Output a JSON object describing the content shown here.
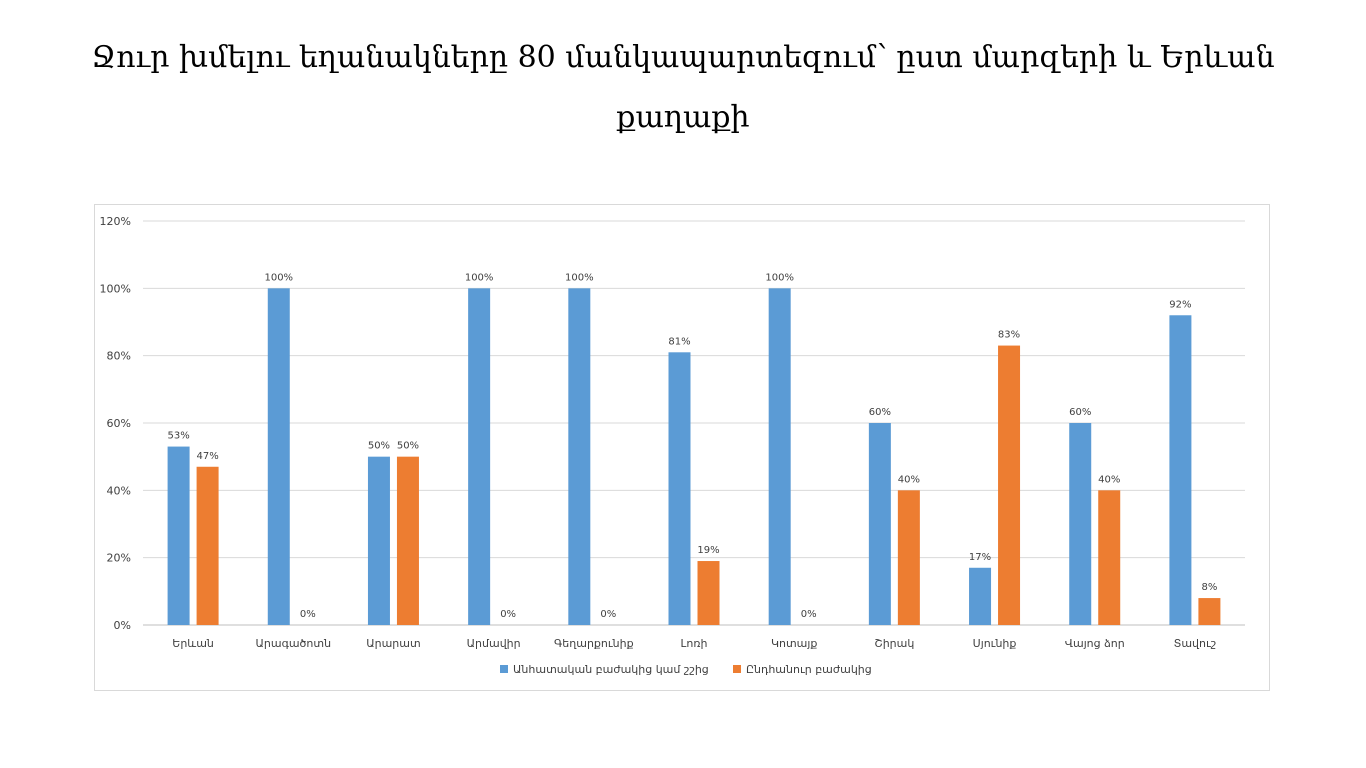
{
  "slide": {
    "title": "Ջուր խմելու եղանակները 80 մանկապարտեզում՝ ըստ մարզերի և Երևան քաղաքի"
  },
  "chart_data": {
    "type": "bar",
    "title": "",
    "xlabel": "",
    "ylabel": "",
    "ylim": [
      0,
      120
    ],
    "y_ticks": [
      "0%",
      "20%",
      "40%",
      "60%",
      "80%",
      "100%",
      "120%"
    ],
    "y_tick_values": [
      0,
      20,
      40,
      60,
      80,
      100,
      120
    ],
    "grid": true,
    "legend_position": "bottom",
    "categories": [
      "Երևան",
      "Արագածոտն",
      "Արարատ",
      "Արմավիր",
      "Գեղարքունիք",
      "Լոռի",
      "Կոտայք",
      "Շիրակ",
      "Սյունիք",
      "Վայոց ձոր",
      "Տավուշ"
    ],
    "series": [
      {
        "name": "Անհատական բաժակից կամ շշից",
        "color": "#5b9bd5",
        "values": [
          53,
          100,
          50,
          100,
          100,
          81,
          100,
          60,
          17,
          60,
          92
        ],
        "labels": [
          "53%",
          "100%",
          "50%",
          "100%",
          "100%",
          "81%",
          "100%",
          "60%",
          "17%",
          "60%",
          "92%"
        ]
      },
      {
        "name": "Ընդհանուր բաժակից",
        "color": "#ed7d31",
        "values": [
          47,
          0,
          50,
          0,
          0,
          19,
          0,
          40,
          83,
          40,
          8
        ],
        "labels": [
          "47%",
          "0%",
          "50%",
          "0%",
          "0%",
          "19%",
          "0%",
          "40%",
          "83%",
          "40%",
          "8%"
        ]
      }
    ]
  }
}
